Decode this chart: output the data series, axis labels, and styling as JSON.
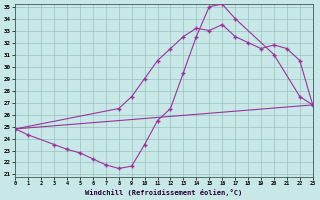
{
  "xlabel": "Windchill (Refroidissement éolien,°C)",
  "bg_color": "#c8e8e8",
  "grid_color": "#9bbfbf",
  "line_color": "#993399",
  "xlim": [
    0,
    23
  ],
  "ylim": [
    21,
    35
  ],
  "xticks": [
    0,
    1,
    2,
    3,
    4,
    5,
    6,
    7,
    8,
    9,
    10,
    11,
    12,
    13,
    14,
    15,
    16,
    17,
    18,
    19,
    20,
    21,
    22,
    23
  ],
  "yticks": [
    21,
    22,
    23,
    24,
    25,
    26,
    27,
    28,
    29,
    30,
    31,
    32,
    33,
    34,
    35
  ],
  "line1_x": [
    0,
    23
  ],
  "line1_y": [
    24.8,
    26.8
  ],
  "line2_x": [
    0,
    1,
    3,
    4,
    5,
    6,
    7,
    8,
    9,
    10,
    11,
    12,
    13,
    14,
    15,
    16,
    17,
    20,
    22,
    23
  ],
  "line2_y": [
    24.8,
    24.3,
    23.5,
    23.1,
    22.8,
    22.3,
    21.8,
    21.5,
    21.7,
    23.5,
    25.5,
    26.5,
    29.5,
    32.5,
    35.0,
    35.2,
    34.0,
    31.0,
    27.5,
    26.8
  ],
  "line3_x": [
    0,
    8,
    9,
    10,
    11,
    12,
    13,
    14,
    15,
    16,
    17,
    18,
    19,
    20,
    21,
    22,
    23
  ],
  "line3_y": [
    24.8,
    26.5,
    27.5,
    29.0,
    30.5,
    31.5,
    32.5,
    33.2,
    33.0,
    33.5,
    32.5,
    32.0,
    31.5,
    31.8,
    31.5,
    30.5,
    26.8
  ]
}
